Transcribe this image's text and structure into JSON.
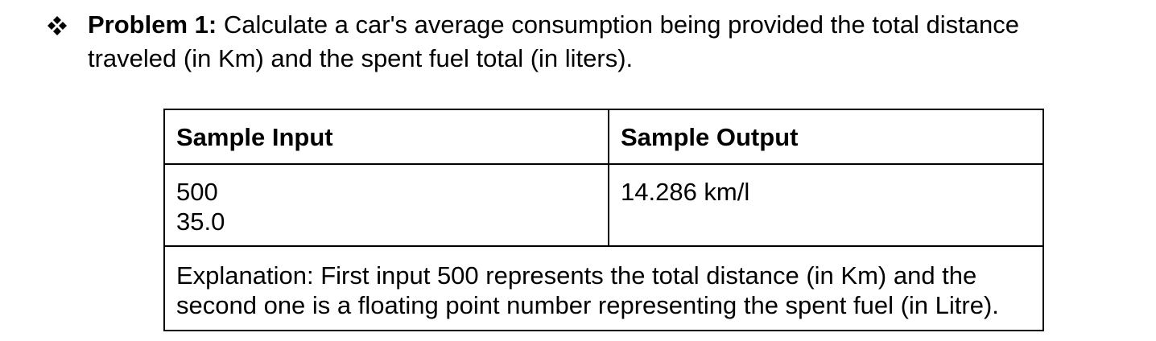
{
  "problem": {
    "label": "Problem 1:",
    "text": " Calculate a car's average consumption being provided the total distance traveled (in Km) and the spent fuel total (in liters)."
  },
  "table": {
    "headers": [
      "Sample Input",
      "Sample Output"
    ],
    "input_lines": [
      "500",
      "35.0"
    ],
    "output": "14.286 km/l",
    "explanation_lines": [
      "Explanation: First input 500 represents the total distance (in Km) and the",
      "second one is a floating point number representing the spent fuel (in Litre)."
    ]
  }
}
